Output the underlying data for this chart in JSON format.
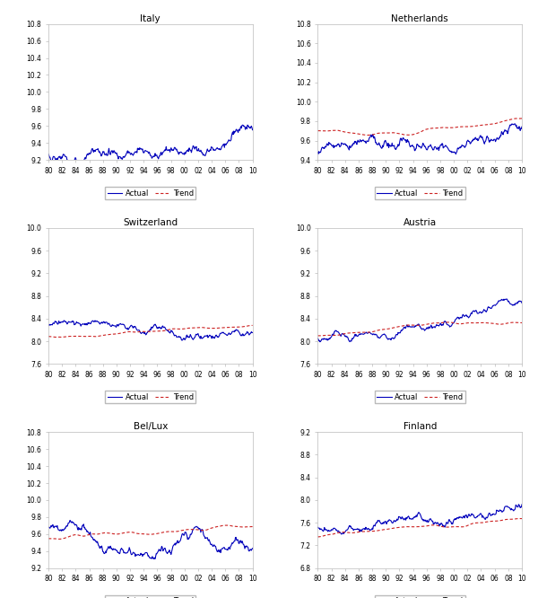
{
  "panels": [
    {
      "title": "Italy",
      "ylim": [
        9.2,
        10.8
      ],
      "yticks": [
        9.2,
        9.4,
        9.6,
        9.8,
        10.0,
        10.2,
        10.4,
        10.6,
        10.8
      ],
      "start_year": 1980,
      "end_year": 2010
    },
    {
      "title": "Netherlands",
      "ylim": [
        9.4,
        10.8
      ],
      "yticks": [
        9.4,
        9.6,
        9.8,
        10.0,
        10.2,
        10.4,
        10.6,
        10.8
      ],
      "start_year": 1980,
      "end_year": 2010
    },
    {
      "title": "Switzerland",
      "ylim": [
        7.6,
        10.0
      ],
      "yticks": [
        7.6,
        8.0,
        8.4,
        8.8,
        9.2,
        9.6,
        10.0
      ],
      "start_year": 1980,
      "end_year": 2010
    },
    {
      "title": "Austria",
      "ylim": [
        7.6,
        10.0
      ],
      "yticks": [
        7.6,
        8.0,
        8.4,
        8.8,
        9.2,
        9.6,
        10.0
      ],
      "start_year": 1980,
      "end_year": 2010
    },
    {
      "title": "Bel/Lux",
      "ylim": [
        9.2,
        10.8
      ],
      "yticks": [
        9.2,
        9.4,
        9.6,
        9.8,
        10.0,
        10.2,
        10.4,
        10.6,
        10.8
      ],
      "start_year": 1980,
      "end_year": 2010
    },
    {
      "title": "Finland",
      "ylim": [
        6.8,
        9.2
      ],
      "yticks": [
        6.8,
        7.2,
        7.6,
        8.0,
        8.4,
        8.8,
        9.2
      ],
      "start_year": 1980,
      "end_year": 2010
    }
  ],
  "actual_color": "#0000BB",
  "trend_color": "#CC2222",
  "actual_lw": 0.8,
  "trend_lw": 0.8,
  "n_points": 372,
  "seed": 42,
  "xtick_labels": [
    "80",
    "82",
    "84",
    "86",
    "88",
    "90",
    "92",
    "94",
    "96",
    "98",
    "00",
    "02",
    "04",
    "06",
    "08",
    "10"
  ]
}
